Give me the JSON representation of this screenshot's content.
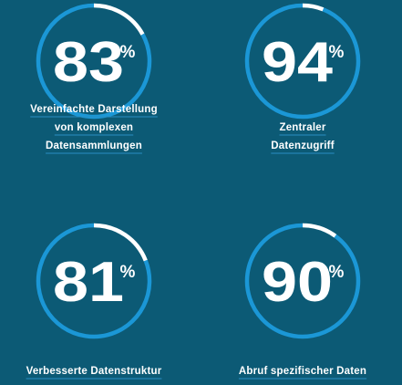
{
  "chart_data": {
    "type": "donut",
    "unit": "%",
    "colors": {
      "background": "#0c5a75",
      "ring": "#1b97d6",
      "remainder": "#ffffff",
      "underline": "#2a8fc2",
      "text": "#ffffff"
    },
    "items": [
      {
        "value": 83,
        "label_lines": [
          "Vereinfachte Darstellung",
          "von komplexen",
          "Datensammlungen"
        ]
      },
      {
        "value": 94,
        "label_lines": [
          "Zentraler",
          "Datenzugriff"
        ]
      },
      {
        "value": 81,
        "label_lines": [
          "Verbesserte Datenstruktur"
        ]
      },
      {
        "value": 90,
        "label_lines": [
          "Abruf spezifischer Daten"
        ]
      }
    ]
  }
}
